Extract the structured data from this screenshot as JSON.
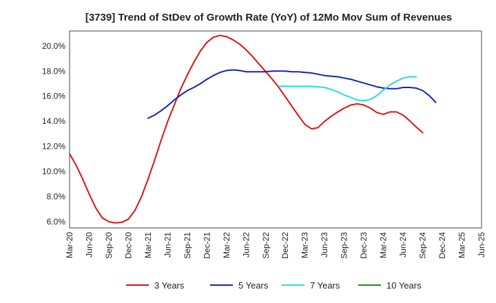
{
  "chart_data": {
    "type": "line",
    "title": "[3739]  Trend of StDev of Growth Rate (YoY) of 12Mo Mov Sum of Revenues",
    "xlabel": "",
    "ylabel": "",
    "x_ticks": [
      "Mar-20",
      "Jun-20",
      "Sep-20",
      "Dec-20",
      "Mar-21",
      "Jun-21",
      "Sep-21",
      "Dec-21",
      "Mar-22",
      "Jun-22",
      "Sep-22",
      "Dec-22",
      "Mar-23",
      "Jun-23",
      "Sep-23",
      "Dec-23",
      "Mar-24",
      "Jun-24",
      "Sep-24",
      "Dec-24",
      "Mar-25",
      "Jun-25"
    ],
    "y_ticks": [
      "6.0%",
      "8.0%",
      "10.0%",
      "12.0%",
      "14.0%",
      "16.0%",
      "18.0%",
      "20.0%"
    ],
    "y_tick_values": [
      6,
      8,
      10,
      12,
      14,
      16,
      18,
      20
    ],
    "ylim": [
      5.5,
      21.2
    ],
    "grid": true,
    "legend_position": "bottom",
    "series": [
      {
        "name": "3 Years",
        "color": "#dd1111",
        "start_index": 0,
        "values": [
          11.4,
          10.5,
          9.4,
          8.2,
          7.1,
          6.3,
          6.0,
          5.9,
          5.95,
          6.2,
          6.9,
          8.0,
          9.4,
          10.9,
          12.5,
          14.0,
          15.3,
          16.6,
          17.7,
          18.7,
          19.6,
          20.3,
          20.7,
          20.85,
          20.75,
          20.5,
          20.15,
          19.7,
          19.15,
          18.55,
          17.95,
          17.35,
          16.7,
          15.95,
          15.2,
          14.45,
          13.75,
          13.4,
          13.5,
          14.0,
          14.4,
          14.75,
          15.05,
          15.3,
          15.4,
          15.3,
          15.05,
          14.7,
          14.55,
          14.75,
          14.75,
          14.5,
          14.05,
          13.55,
          13.1
        ]
      },
      {
        "name": "5 Years",
        "color": "#1122bb",
        "start_index": 12,
        "values": [
          14.25,
          14.5,
          14.85,
          15.25,
          15.7,
          16.1,
          16.45,
          16.7,
          17.0,
          17.35,
          17.65,
          17.9,
          18.05,
          18.1,
          18.05,
          17.95,
          17.95,
          17.95,
          17.95,
          18.0,
          18.0,
          18.0,
          17.95,
          17.95,
          17.9,
          17.85,
          17.75,
          17.65,
          17.6,
          17.55,
          17.45,
          17.35,
          17.2,
          17.05,
          16.9,
          16.75,
          16.65,
          16.6,
          16.6,
          16.7,
          16.7,
          16.65,
          16.45,
          16.05,
          15.5
        ]
      },
      {
        "name": "7 Years",
        "color": "#22dddd",
        "start_index": 32,
        "values": [
          16.8,
          16.8,
          16.8,
          16.8,
          16.8,
          16.8,
          16.75,
          16.7,
          16.55,
          16.35,
          16.1,
          15.9,
          15.7,
          15.65,
          15.75,
          16.05,
          16.5,
          16.9,
          17.2,
          17.45,
          17.55,
          17.55
        ]
      },
      {
        "name": "10 Years",
        "color": "#228822",
        "start_index": 0,
        "values": []
      }
    ]
  }
}
